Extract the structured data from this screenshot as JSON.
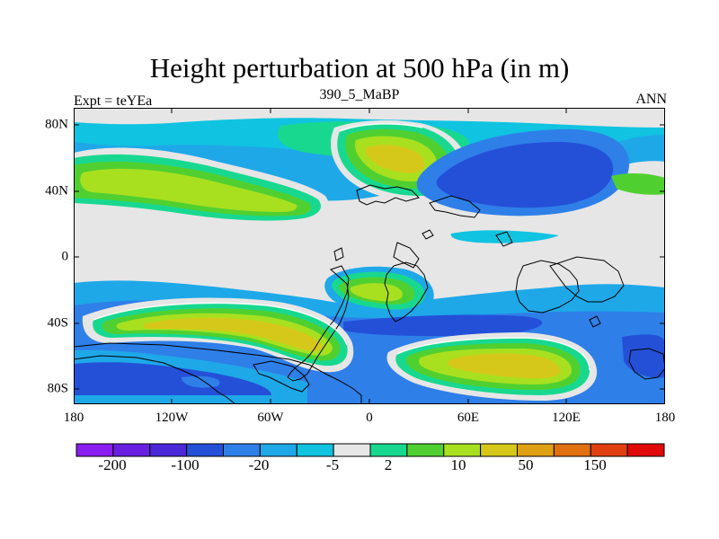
{
  "title": "Height perturbation at 500 hPa (in m)",
  "left_string": "Expt = teYEa",
  "center_string": "390_5_MaBP",
  "right_string": "ANN",
  "lat_ticks": [
    "80N",
    "40N",
    "0",
    "40S",
    "80S"
  ],
  "lon_ticks": [
    "180",
    "120W",
    "60W",
    "0",
    "60E",
    "120E",
    "180"
  ],
  "colorbar": {
    "colors": [
      "#8a1ef0",
      "#6a20e0",
      "#4a28d8",
      "#2450d8",
      "#2f7fe8",
      "#1ea8e8",
      "#10c3e0",
      "#e6e6e6",
      "#18d890",
      "#50d030",
      "#a8e020",
      "#d6c81a",
      "#e0a014",
      "#e07010",
      "#e04010",
      "#e00808"
    ],
    "labels": [
      "-200",
      "-100",
      "-20",
      "-5",
      "2",
      "10",
      "50",
      "150"
    ]
  },
  "palette": {
    "land_border": "#000000",
    "background": "#e6e6e6"
  }
}
